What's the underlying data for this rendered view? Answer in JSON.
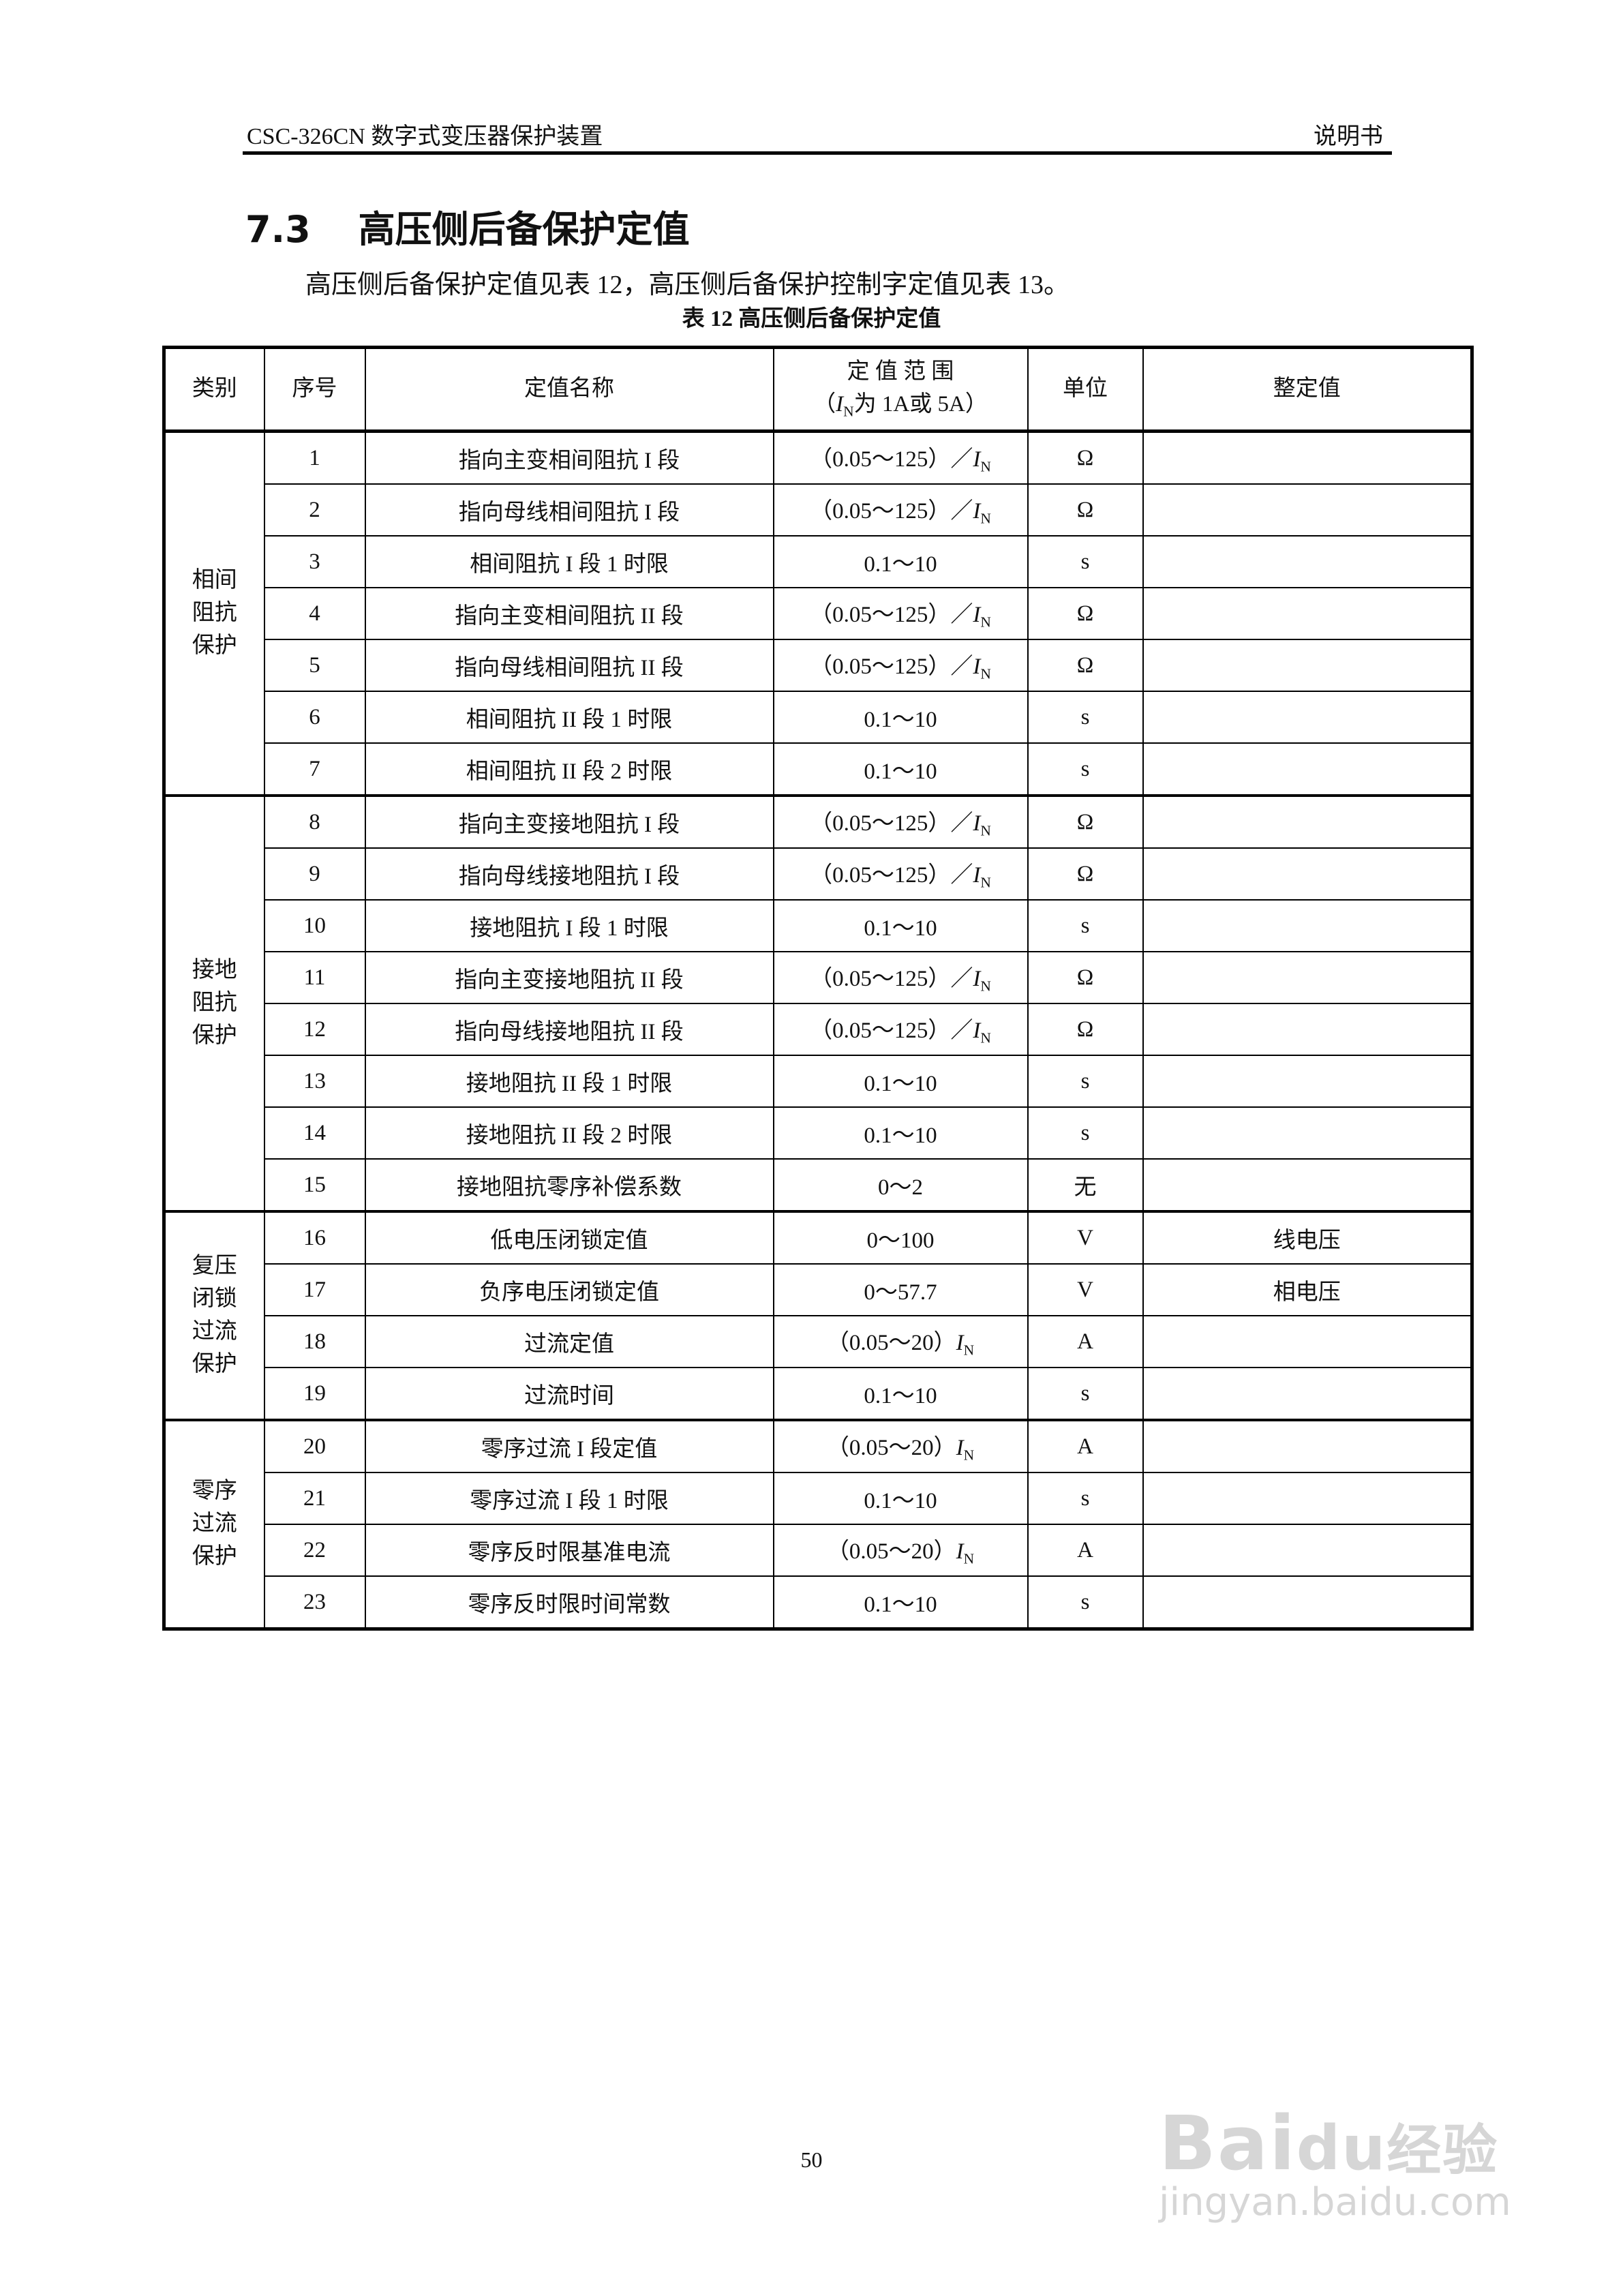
{
  "header": {
    "left": "CSC-326CN 数字式变压器保护装置",
    "right": "说明书"
  },
  "section": {
    "number": "7.3",
    "title": "高压侧后备保护定值"
  },
  "paragraph": "高压侧后备保护定值见表 12，高压侧后备保护控制字定值见表 13。",
  "table": {
    "caption": "表 12  高压侧后备保护定值",
    "headers": {
      "category": "类别",
      "no": "序号",
      "name": "定值名称",
      "range_line1": "定 值 范 围",
      "range_line2_pre": "（",
      "range_line2_I": "I",
      "range_line2_sub": "N",
      "range_line2_post": "为 1A或 5A）",
      "unit": "单位",
      "setting": "整定值"
    },
    "groups": [
      {
        "category": "相间阻抗保护",
        "rows": [
          {
            "no": "1",
            "name": "指向主变相间阻抗 I 段",
            "range": "（0.05～125）／",
            "range_in": true,
            "unit": "Ω",
            "setting": ""
          },
          {
            "no": "2",
            "name": "指向母线相间阻抗 I 段",
            "range": "（0.05～125）／",
            "range_in": true,
            "unit": "Ω",
            "setting": ""
          },
          {
            "no": "3",
            "name": "相间阻抗 I 段 1 时限",
            "range": "0.1～10",
            "range_in": false,
            "unit": "s",
            "setting": ""
          },
          {
            "no": "4",
            "name": "指向主变相间阻抗 II 段",
            "range": "（0.05～125）／",
            "range_in": true,
            "unit": "Ω",
            "setting": ""
          },
          {
            "no": "5",
            "name": "指向母线相间阻抗 II 段",
            "range": "（0.05～125）／",
            "range_in": true,
            "unit": "Ω",
            "setting": ""
          },
          {
            "no": "6",
            "name": "相间阻抗 II 段 1 时限",
            "range": "0.1～10",
            "range_in": false,
            "unit": "s",
            "setting": ""
          },
          {
            "no": "7",
            "name": "相间阻抗 II 段 2 时限",
            "range": "0.1～10",
            "range_in": false,
            "unit": "s",
            "setting": ""
          }
        ]
      },
      {
        "category": "接地阻抗保护",
        "rows": [
          {
            "no": "8",
            "name": "指向主变接地阻抗 I 段",
            "range": "（0.05～125）／",
            "range_in": true,
            "unit": "Ω",
            "setting": ""
          },
          {
            "no": "9",
            "name": "指向母线接地阻抗 I 段",
            "range": "（0.05～125）／",
            "range_in": true,
            "unit": "Ω",
            "setting": ""
          },
          {
            "no": "10",
            "name": "接地阻抗 I 段 1 时限",
            "range": "0.1～10",
            "range_in": false,
            "unit": "s",
            "setting": ""
          },
          {
            "no": "11",
            "name": "指向主变接地阻抗 II 段",
            "range": "（0.05～125）／",
            "range_in": true,
            "unit": "Ω",
            "setting": ""
          },
          {
            "no": "12",
            "name": "指向母线接地阻抗 II 段",
            "range": "（0.05～125）／",
            "range_in": true,
            "unit": "Ω",
            "setting": ""
          },
          {
            "no": "13",
            "name": "接地阻抗 II 段 1 时限",
            "range": "0.1～10",
            "range_in": false,
            "unit": "s",
            "setting": ""
          },
          {
            "no": "14",
            "name": "接地阻抗 II 段 2 时限",
            "range": "0.1～10",
            "range_in": false,
            "unit": "s",
            "setting": ""
          },
          {
            "no": "15",
            "name": "接地阻抗零序补偿系数",
            "range": "0～2",
            "range_in": false,
            "unit": "无",
            "setting": ""
          }
        ]
      },
      {
        "category": "复压闭锁过流保护",
        "rows": [
          {
            "no": "16",
            "name": "低电压闭锁定值",
            "range": "0～100",
            "range_in": false,
            "unit": "V",
            "setting": "线电压"
          },
          {
            "no": "17",
            "name": "负序电压闭锁定值",
            "range": "0～57.7",
            "range_in": false,
            "unit": "V",
            "setting": "相电压"
          },
          {
            "no": "18",
            "name": "过流定值",
            "range": "（0.05～20）",
            "range_in": true,
            "unit": "A",
            "setting": ""
          },
          {
            "no": "19",
            "name": "过流时间",
            "range": "0.1～10",
            "range_in": false,
            "unit": "s",
            "setting": ""
          }
        ]
      },
      {
        "category": "零序过流保护",
        "rows": [
          {
            "no": "20",
            "name": "零序过流 I 段定值",
            "range": "（0.05～20）",
            "range_in": true,
            "unit": "A",
            "setting": ""
          },
          {
            "no": "21",
            "name": "零序过流 I 段 1 时限",
            "range": "0.1～10",
            "range_in": false,
            "unit": "s",
            "setting": ""
          },
          {
            "no": "22",
            "name": "零序反时限基准电流",
            "range": "（0.05～20）",
            "range_in": true,
            "unit": "A",
            "setting": ""
          },
          {
            "no": "23",
            "name": "零序反时限时间常数",
            "range": "0.1～10",
            "range_in": false,
            "unit": "s",
            "setting": ""
          }
        ]
      }
    ]
  },
  "page_number": "50",
  "watermark": {
    "logo": "Baidu经验",
    "url": "jingyan.baidu.com"
  }
}
